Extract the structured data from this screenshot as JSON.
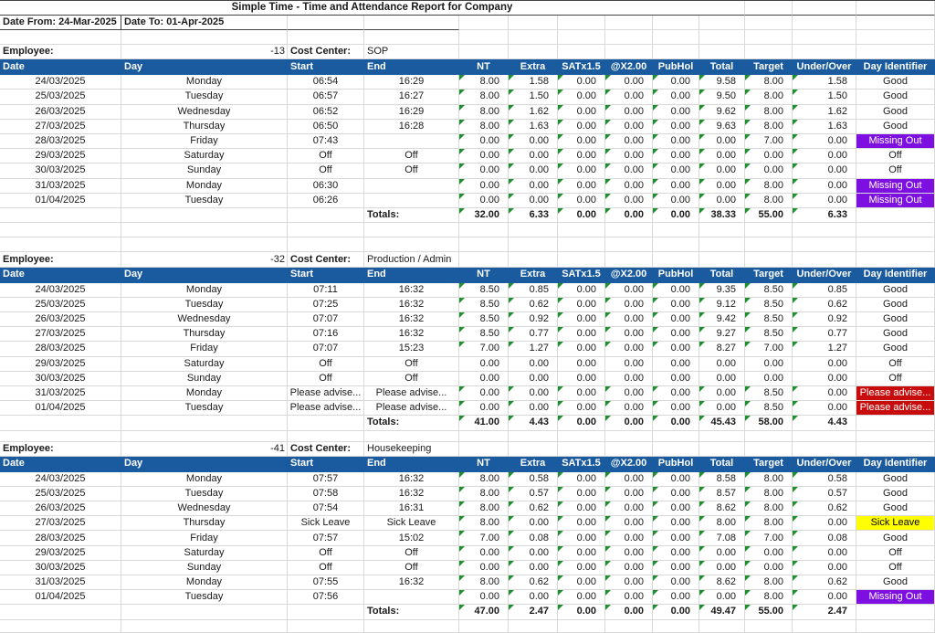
{
  "title": "Simple Time - Time and Attendance Report for Company",
  "date_from_label": "Date From: 24-Mar-2025",
  "date_to_label": "Date To: 01-Apr-2025",
  "employee_label": "Employee:",
  "cost_center_label": "Cost Center:",
  "totals_label": "Totals:",
  "columns": [
    "Date",
    "Day",
    "Start",
    "End",
    "NT",
    "Extra",
    "SATx1.5",
    "@X2.00",
    "PubHol",
    "Total",
    "Target",
    "Under/Over",
    "Day Identifier"
  ],
  "icons": {
    "error_indicator": "green-corner-triangle"
  },
  "colors": {
    "header_bg": "#1A5A9E",
    "header_text": "#FFFFFF",
    "grid_line": "#D9D9D9",
    "dark_line": "#444444",
    "triangle_green": "#1E8F2D",
    "missing_bg": "#7D0FE0",
    "missing_text": "#FFFFFF",
    "advise_bg": "#C80B0B",
    "advise_text": "#FFFFFF",
    "sick_bg": "#FFFF00",
    "sick_text": "#000000",
    "body_text": "#1A1A1A"
  },
  "sections": [
    {
      "employee_id": "-13",
      "cost_center": "SOP",
      "rows": [
        {
          "values": [
            "24/03/2025",
            "Monday",
            "06:54",
            "16:29",
            "8.00",
            "1.58",
            "0.00",
            "0.00",
            "0.00",
            "9.58",
            "8.00",
            "1.58"
          ],
          "identifier": "Good",
          "id_style": "none",
          "triangles": true
        },
        {
          "values": [
            "25/03/2025",
            "Tuesday",
            "06:57",
            "16:27",
            "8.00",
            "1.50",
            "0.00",
            "0.00",
            "0.00",
            "9.50",
            "8.00",
            "1.50"
          ],
          "identifier": "Good",
          "id_style": "none",
          "triangles": true
        },
        {
          "values": [
            "26/03/2025",
            "Wednesday",
            "06:52",
            "16:29",
            "8.00",
            "1.62",
            "0.00",
            "0.00",
            "0.00",
            "9.62",
            "8.00",
            "1.62"
          ],
          "identifier": "Good",
          "id_style": "none",
          "triangles": true
        },
        {
          "values": [
            "27/03/2025",
            "Thursday",
            "06:50",
            "16:28",
            "8.00",
            "1.63",
            "0.00",
            "0.00",
            "0.00",
            "9.63",
            "8.00",
            "1.63"
          ],
          "identifier": "Good",
          "id_style": "none",
          "triangles": true
        },
        {
          "values": [
            "28/03/2025",
            "Friday",
            "07:43",
            "",
            "0.00",
            "0.00",
            "0.00",
            "0.00",
            "0.00",
            "0.00",
            "7.00",
            "0.00"
          ],
          "identifier": "Missing Out",
          "id_style": "missing",
          "triangles": true
        },
        {
          "values": [
            "29/03/2025",
            "Saturday",
            "Off",
            "Off",
            "0.00",
            "0.00",
            "0.00",
            "0.00",
            "0.00",
            "0.00",
            "0.00",
            "0.00"
          ],
          "identifier": "Off",
          "id_style": "none",
          "triangles": true
        },
        {
          "values": [
            "30/03/2025",
            "Sunday",
            "Off",
            "Off",
            "0.00",
            "0.00",
            "0.00",
            "0.00",
            "0.00",
            "0.00",
            "0.00",
            "0.00"
          ],
          "identifier": "Off",
          "id_style": "none",
          "triangles": true
        },
        {
          "values": [
            "31/03/2025",
            "Monday",
            "06:30",
            "",
            "0.00",
            "0.00",
            "0.00",
            "0.00",
            "0.00",
            "0.00",
            "8.00",
            "0.00"
          ],
          "identifier": "Missing Out",
          "id_style": "missing",
          "triangles": true
        },
        {
          "values": [
            "01/04/2025",
            "Tuesday",
            "06:26",
            "",
            "0.00",
            "0.00",
            "0.00",
            "0.00",
            "0.00",
            "0.00",
            "8.00",
            "0.00"
          ],
          "identifier": "Missing Out",
          "id_style": "missing",
          "triangles": true
        }
      ],
      "totals": [
        "32.00",
        "6.33",
        "0.00",
        "0.00",
        "0.00",
        "38.33",
        "55.00",
        "6.33"
      ]
    },
    {
      "employee_id": "-32",
      "cost_center": "Production / Admin",
      "rows": [
        {
          "values": [
            "24/03/2025",
            "Monday",
            "07:11",
            "16:32",
            "8.50",
            "0.85",
            "0.00",
            "0.00",
            "0.00",
            "9.35",
            "8.50",
            "0.85"
          ],
          "identifier": "Good",
          "id_style": "none",
          "triangles": true
        },
        {
          "values": [
            "25/03/2025",
            "Tuesday",
            "07:25",
            "16:32",
            "8.50",
            "0.62",
            "0.00",
            "0.00",
            "0.00",
            "9.12",
            "8.50",
            "0.62"
          ],
          "identifier": "Good",
          "id_style": "none",
          "triangles": true
        },
        {
          "values": [
            "26/03/2025",
            "Wednesday",
            "07:07",
            "16:32",
            "8.50",
            "0.92",
            "0.00",
            "0.00",
            "0.00",
            "9.42",
            "8.50",
            "0.92"
          ],
          "identifier": "Good",
          "id_style": "none",
          "triangles": true
        },
        {
          "values": [
            "27/03/2025",
            "Thursday",
            "07:16",
            "16:32",
            "8.50",
            "0.77",
            "0.00",
            "0.00",
            "0.00",
            "9.27",
            "8.50",
            "0.77"
          ],
          "identifier": "Good",
          "id_style": "none",
          "triangles": true
        },
        {
          "values": [
            "28/03/2025",
            "Friday",
            "07:07",
            "15:23",
            "7.00",
            "1.27",
            "0.00",
            "0.00",
            "0.00",
            "8.27",
            "7.00",
            "1.27"
          ],
          "identifier": "Good",
          "id_style": "none",
          "triangles": true
        },
        {
          "values": [
            "29/03/2025",
            "Saturday",
            "Off",
            "Off",
            "0.00",
            "0.00",
            "0.00",
            "0.00",
            "0.00",
            "0.00",
            "0.00",
            "0.00"
          ],
          "identifier": "Off",
          "id_style": "none",
          "triangles": false
        },
        {
          "values": [
            "30/03/2025",
            "Sunday",
            "Off",
            "Off",
            "0.00",
            "0.00",
            "0.00",
            "0.00",
            "0.00",
            "0.00",
            "0.00",
            "0.00"
          ],
          "identifier": "Off",
          "id_style": "none",
          "triangles": false
        },
        {
          "values": [
            "31/03/2025",
            "Monday",
            "Please advise...",
            "Please advise...",
            "0.00",
            "0.00",
            "0.00",
            "0.00",
            "0.00",
            "0.00",
            "8.50",
            "0.00"
          ],
          "identifier": "Please advise...",
          "id_style": "advise",
          "triangles": true
        },
        {
          "values": [
            "01/04/2025",
            "Tuesday",
            "Please advise...",
            "Please advise...",
            "0.00",
            "0.00",
            "0.00",
            "0.00",
            "0.00",
            "0.00",
            "8.50",
            "0.00"
          ],
          "identifier": "Please advise...",
          "id_style": "advise",
          "triangles": true
        }
      ],
      "totals": [
        "41.00",
        "4.43",
        "0.00",
        "0.00",
        "0.00",
        "45.43",
        "58.00",
        "4.43"
      ]
    },
    {
      "employee_id": "-41",
      "cost_center": "Housekeeping",
      "rows": [
        {
          "values": [
            "24/03/2025",
            "Monday",
            "07:57",
            "16:32",
            "8.00",
            "0.58",
            "0.00",
            "0.00",
            "0.00",
            "8.58",
            "8.00",
            "0.58"
          ],
          "identifier": "Good",
          "id_style": "none",
          "triangles": true
        },
        {
          "values": [
            "25/03/2025",
            "Tuesday",
            "07:58",
            "16:32",
            "8.00",
            "0.57",
            "0.00",
            "0.00",
            "0.00",
            "8.57",
            "8.00",
            "0.57"
          ],
          "identifier": "Good",
          "id_style": "none",
          "triangles": true
        },
        {
          "values": [
            "26/03/2025",
            "Wednesday",
            "07:54",
            "16:31",
            "8.00",
            "0.62",
            "0.00",
            "0.00",
            "0.00",
            "8.62",
            "8.00",
            "0.62"
          ],
          "identifier": "Good",
          "id_style": "none",
          "triangles": true
        },
        {
          "values": [
            "27/03/2025",
            "Thursday",
            "Sick Leave",
            "Sick Leave",
            "8.00",
            "0.00",
            "0.00",
            "0.00",
            "0.00",
            "8.00",
            "8.00",
            "0.00"
          ],
          "identifier": "Sick Leave",
          "id_style": "sick",
          "triangles": true
        },
        {
          "values": [
            "28/03/2025",
            "Friday",
            "07:57",
            "15:02",
            "7.00",
            "0.08",
            "0.00",
            "0.00",
            "0.00",
            "7.08",
            "7.00",
            "0.08"
          ],
          "identifier": "Good",
          "id_style": "none",
          "triangles": true
        },
        {
          "values": [
            "29/03/2025",
            "Saturday",
            "Off",
            "Off",
            "0.00",
            "0.00",
            "0.00",
            "0.00",
            "0.00",
            "0.00",
            "0.00",
            "0.00"
          ],
          "identifier": "Off",
          "id_style": "none",
          "triangles": true
        },
        {
          "values": [
            "30/03/2025",
            "Sunday",
            "Off",
            "Off",
            "0.00",
            "0.00",
            "0.00",
            "0.00",
            "0.00",
            "0.00",
            "0.00",
            "0.00"
          ],
          "identifier": "Off",
          "id_style": "none",
          "triangles": true
        },
        {
          "values": [
            "31/03/2025",
            "Monday",
            "07:55",
            "16:32",
            "8.00",
            "0.62",
            "0.00",
            "0.00",
            "0.00",
            "8.62",
            "8.00",
            "0.62"
          ],
          "identifier": "Good",
          "id_style": "none",
          "triangles": true
        },
        {
          "values": [
            "01/04/2025",
            "Tuesday",
            "07:56",
            "",
            "0.00",
            "0.00",
            "0.00",
            "0.00",
            "0.00",
            "0.00",
            "8.00",
            "0.00"
          ],
          "identifier": "Missing Out",
          "id_style": "missing",
          "triangles": true
        }
      ],
      "totals": [
        "47.00",
        "2.47",
        "0.00",
        "0.00",
        "0.00",
        "49.47",
        "55.00",
        "2.47"
      ]
    }
  ]
}
